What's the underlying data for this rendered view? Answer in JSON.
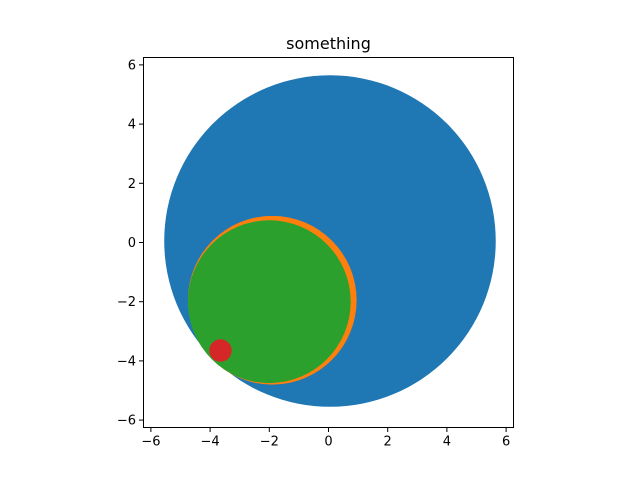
{
  "chart_data": {
    "type": "scatter",
    "title": "something",
    "xlabel": "",
    "ylabel": "",
    "xlim": [
      -6.25,
      6.25
    ],
    "ylim": [
      -6.25,
      6.25
    ],
    "xticks": [
      -6,
      -4,
      -2,
      0,
      2,
      4,
      6
    ],
    "yticks": [
      -6,
      -4,
      -2,
      0,
      2,
      4,
      6
    ],
    "grid": false,
    "legend": "none",
    "aspect": "equal",
    "circles": [
      {
        "cx": 0.05,
        "cy": 0.05,
        "r": 5.6,
        "color": "#1f77b4"
      },
      {
        "cx": -1.9,
        "cy": -1.95,
        "r": 2.85,
        "color": "#ff7f0e"
      },
      {
        "cx": -2.0,
        "cy": -2.0,
        "r": 2.75,
        "color": "#2ca02c"
      },
      {
        "cx": -3.65,
        "cy": -3.65,
        "r": 0.38,
        "color": "#d62728"
      }
    ]
  }
}
